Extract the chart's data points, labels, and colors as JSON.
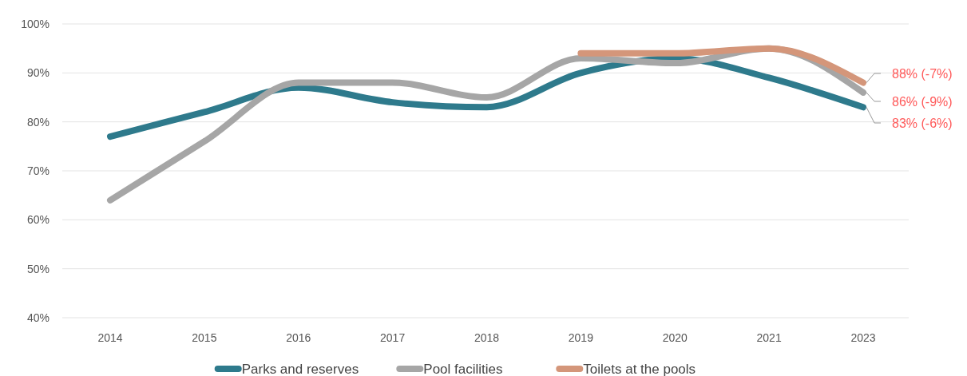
{
  "chart_data": {
    "type": "line",
    "categories": [
      "2014",
      "2015",
      "2016",
      "2017",
      "2018",
      "2019",
      "2020",
      "2021",
      "2023"
    ],
    "series": [
      {
        "name": "Parks and reserves",
        "color": "#2e7a8c",
        "values": [
          77,
          82,
          87,
          84,
          83,
          90,
          93,
          89,
          83
        ]
      },
      {
        "name": "Pool facilities",
        "color": "#a6a6a6",
        "values": [
          64,
          76,
          88,
          88,
          85,
          93,
          92,
          95,
          86
        ]
      },
      {
        "name": "Toilets at the pools",
        "color": "#d4967a",
        "values": [
          null,
          null,
          null,
          null,
          null,
          94,
          94,
          95,
          88
        ]
      }
    ],
    "ylim": [
      40,
      100
    ],
    "yticks": [
      {
        "value": 40,
        "label": "40%"
      },
      {
        "value": 50,
        "label": "50%"
      },
      {
        "value": 60,
        "label": "60%"
      },
      {
        "value": 70,
        "label": "70%"
      },
      {
        "value": 80,
        "label": "80%"
      },
      {
        "value": 90,
        "label": "90%"
      },
      {
        "value": 100,
        "label": "100%"
      }
    ],
    "grid": "y",
    "legend": "bottom",
    "marker": "none",
    "line_style": "solid",
    "annotations": [
      {
        "text": "88% (-7%)",
        "x": "2023",
        "y": 88
      },
      {
        "text": "86% (-9%)",
        "x": "2023",
        "y": 86
      },
      {
        "text": "83% (-6%)",
        "x": "2023",
        "y": 83
      }
    ]
  }
}
